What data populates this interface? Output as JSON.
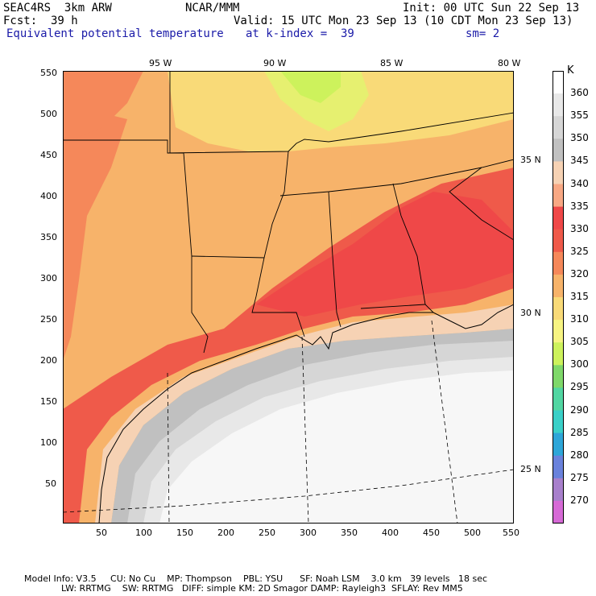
{
  "header": {
    "model": "SEAC4RS  3km ARW",
    "org": "NCAR/MMM",
    "init": "Init: 00 UTC Sun 22 Sep 13",
    "fcst": "Fcst:  39 h",
    "valid": "Valid: 15 UTC Mon 23 Sep 13 (10 CDT Mon 23 Sep 13)",
    "field": "Equivalent potential temperature",
    "level": "at k-index =  39",
    "smooth": "sm= 2",
    "field_color": "#1a1aa8"
  },
  "lon_labels": [
    "95 W",
    "90 W",
    "85 W",
    "80 W"
  ],
  "lat_labels": [
    "35 N",
    "30 N",
    "25 N"
  ],
  "x_ticks": [
    "50",
    "100",
    "150",
    "200",
    "250",
    "300",
    "350",
    "400",
    "450",
    "500",
    "550"
  ],
  "y_ticks": [
    "550",
    "500",
    "450",
    "400",
    "350",
    "300",
    "250",
    "200",
    "150",
    "100",
    "50"
  ],
  "colorbar": {
    "unit": "K",
    "levels": [
      "360",
      "355",
      "350",
      "345",
      "340",
      "335",
      "330",
      "325",
      "320",
      "315",
      "310",
      "305",
      "300",
      "295",
      "290",
      "285",
      "280",
      "275",
      "270"
    ],
    "colors": [
      "#ffffff",
      "#e8e8e8",
      "#d6d6d6",
      "#c0c0c0",
      "#f6d2b4",
      "#f8a884",
      "#ef4848",
      "#ef5a4a",
      "#f5885a",
      "#f7b36a",
      "#f9da78",
      "#f7f482",
      "#cdf25c",
      "#7fd86a",
      "#52d6a2",
      "#3ad0c8",
      "#2ea6d8",
      "#6a82dc",
      "#a880cc",
      "#d66ad6"
    ]
  },
  "footer": {
    "line1": "Model Info: V3.5     CU: No Cu    MP: Thompson    PBL: YSU      SF: Noah LSM    3.0 km   39 levels   18 sec",
    "line2": "LW: RRTMG    SW: RRTMG   DIFF: simple KM: 2D Smagor DAMP: Rayleigh3  SFLAY: Rev MM5"
  }
}
